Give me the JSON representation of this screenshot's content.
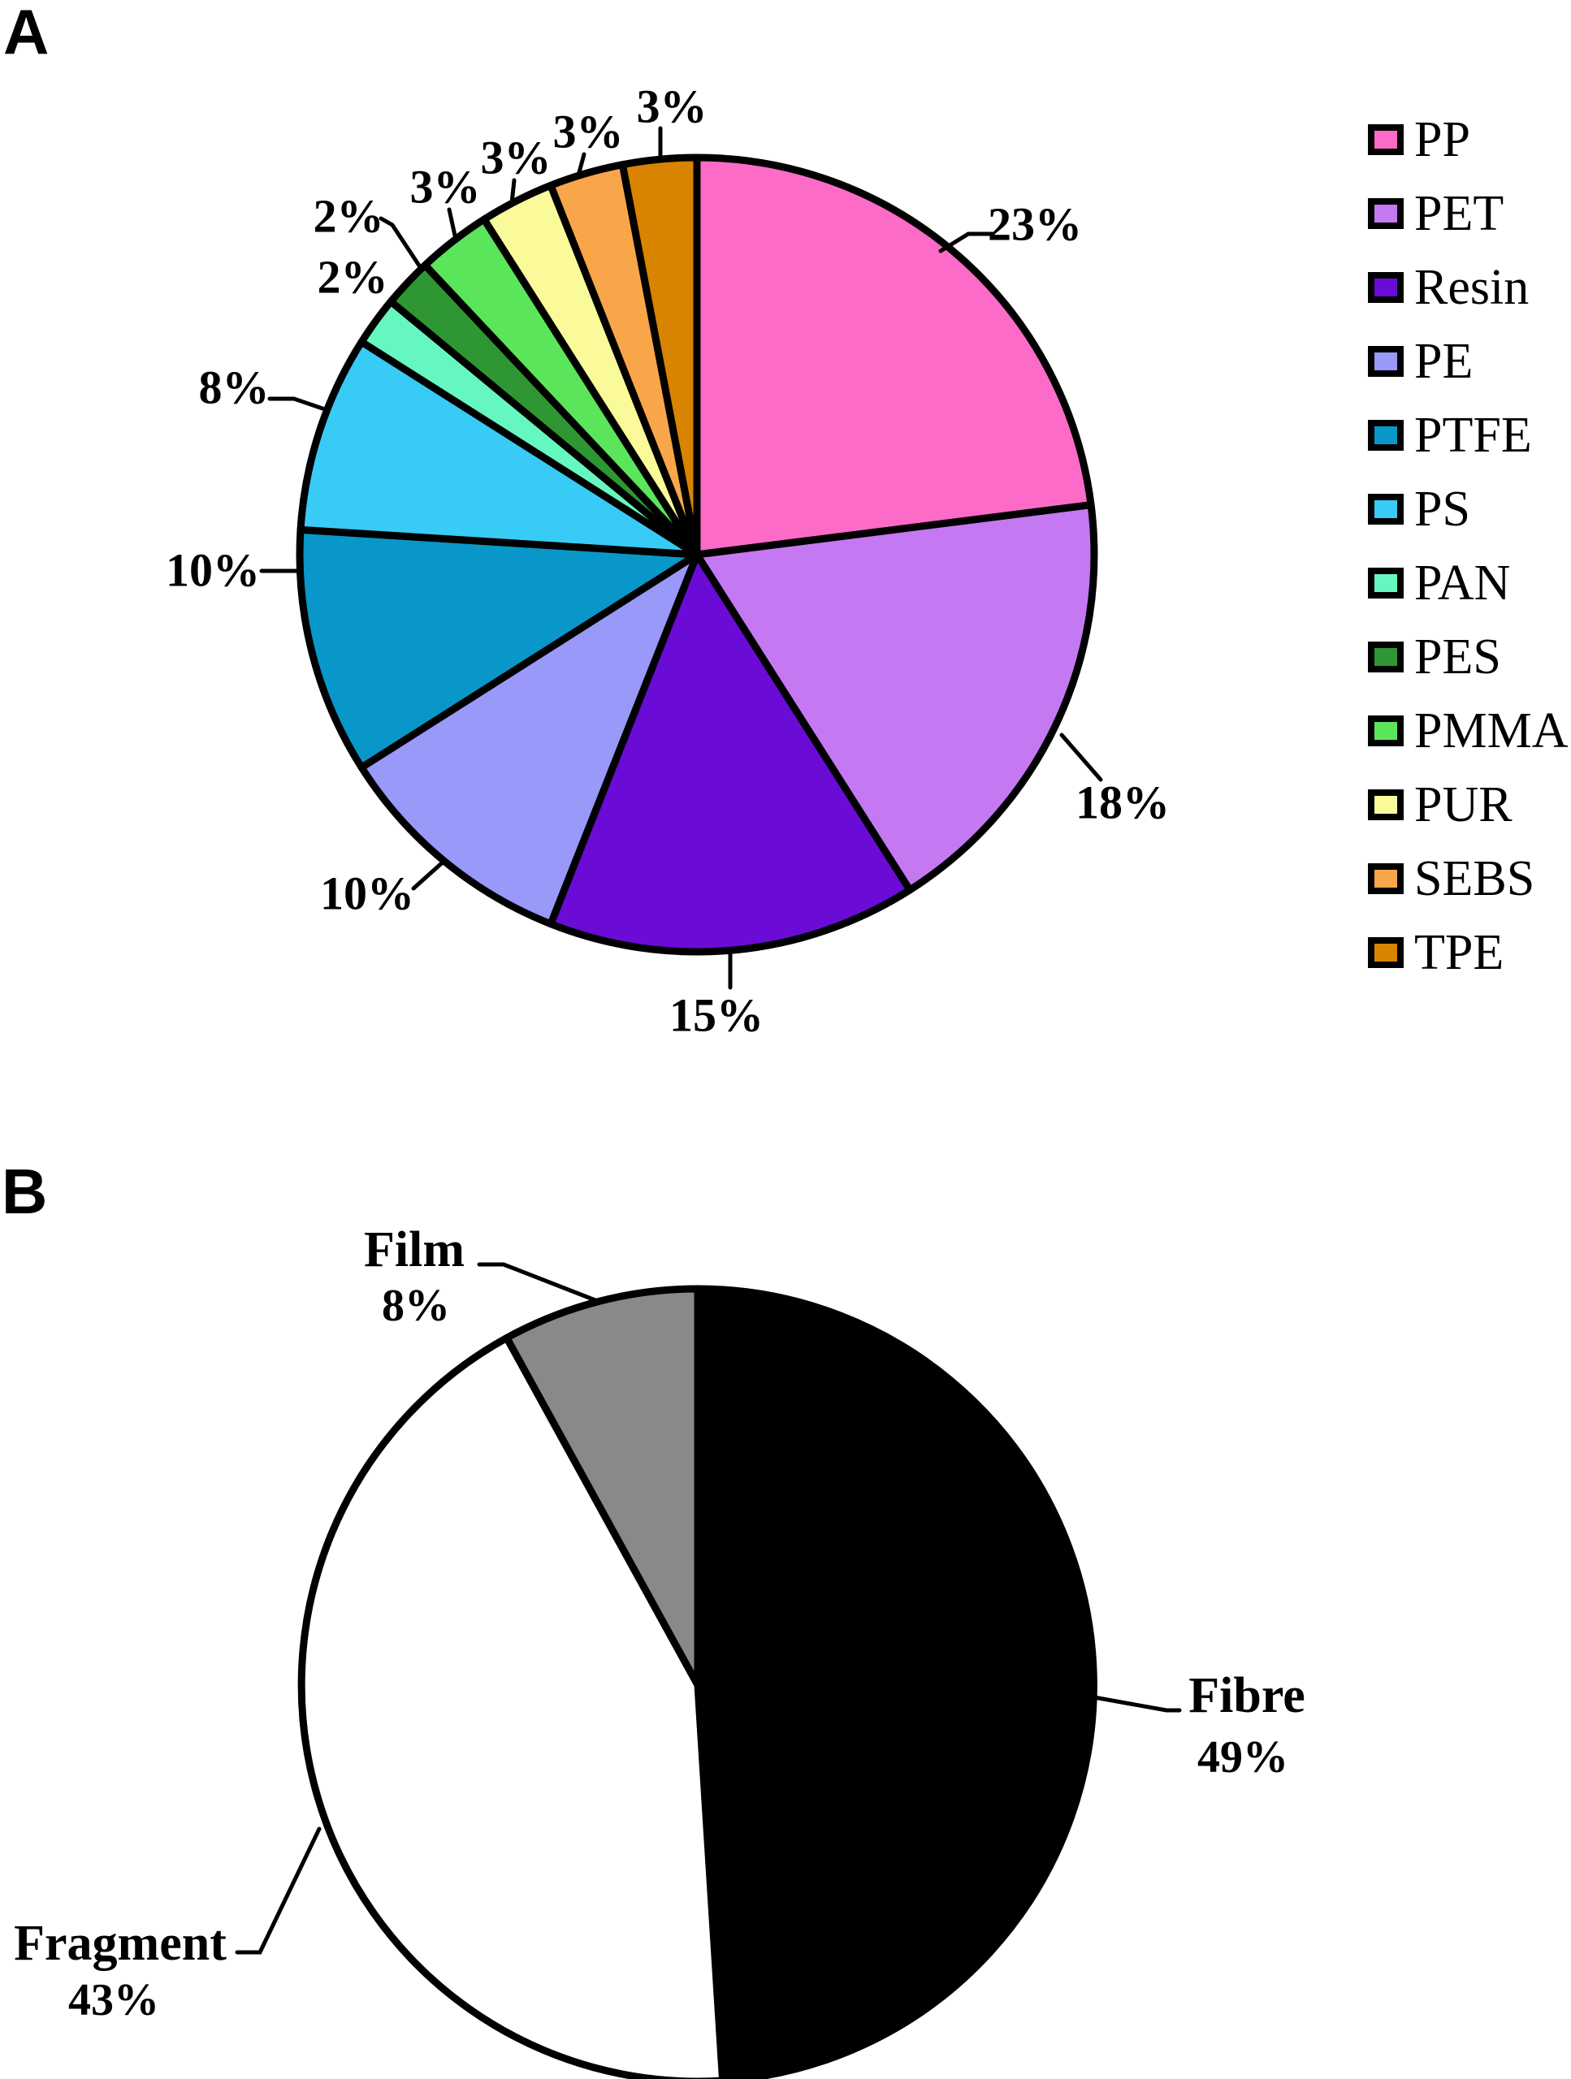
{
  "chart_data": [
    {
      "panel": "A",
      "title": "A",
      "type": "pie",
      "categories": [
        "PP",
        "PET",
        "Resin",
        "PE",
        "PTFE",
        "PS",
        "PAN",
        "PES",
        "PMMA",
        "PUR",
        "SEBS",
        "TPE"
      ],
      "values": [
        23,
        18,
        15,
        10,
        10,
        8,
        2,
        2,
        3,
        3,
        3,
        3
      ],
      "colors": [
        "#FC6BC8",
        "#C479F2",
        "#6A0BD6",
        "#9999F9",
        "#0997C9",
        "#38CBF5",
        "#66F7C0",
        "#2E9733",
        "#5BE55B",
        "#FAFA9B",
        "#F9A64A",
        "#D88400"
      ],
      "slice_labels": [
        "23%",
        "18%",
        "15%",
        "10%",
        "10%",
        "8%",
        "2%",
        "2%",
        "3%",
        "3%",
        "3%",
        "3%"
      ],
      "unit": "%",
      "start_angle_deg": 0,
      "direction": "clockwise",
      "legend": true,
      "legend_position": "right",
      "outline_color": "#000000"
    },
    {
      "panel": "B",
      "title": "B",
      "type": "pie",
      "categories": [
        "Fibre",
        "Fragment",
        "Film"
      ],
      "values": [
        49,
        43,
        8
      ],
      "colors": [
        "#000000",
        "#FFFFFF",
        "#898989"
      ],
      "slice_labels": [
        "Fibre 49%",
        "Fragment 43%",
        "Film 8%"
      ],
      "unit": "%",
      "start_angle_deg": 0,
      "direction": "clockwise",
      "legend": false,
      "outline_color": "#000000"
    }
  ]
}
